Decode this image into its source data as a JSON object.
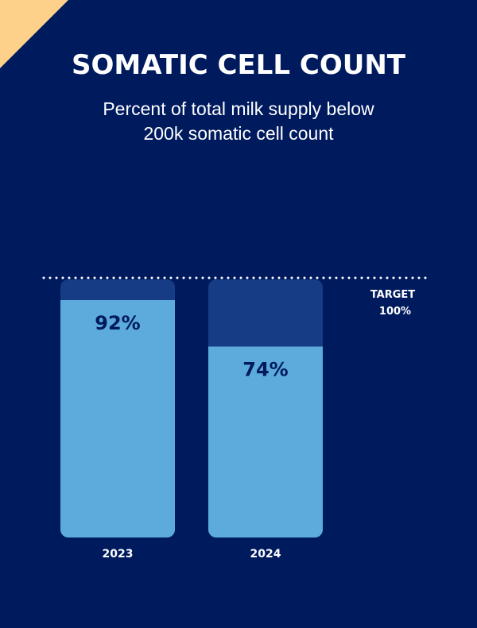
{
  "title": "SOMATIC CELL COUNT",
  "subtitle_line1": "Percent of total milk supply below",
  "subtitle_line2": "200k somatic cell count",
  "colors": {
    "background": "#001a5e",
    "accent_corner": "#fdd189",
    "bar_track": "#153c85",
    "bar_fill": "#5cabdc",
    "label_on_bar": "#001a5e",
    "text": "#ffffff"
  },
  "chart_data": {
    "type": "bar",
    "title": "SOMATIC CELL COUNT",
    "subtitle": "Percent of total milk supply below 200k somatic cell count",
    "categories": [
      "2023",
      "2024"
    ],
    "values": [
      92,
      74
    ],
    "value_labels": [
      "92%",
      "74%"
    ],
    "ylim": [
      0,
      100
    ],
    "xlabel": "",
    "ylabel": "",
    "target": {
      "value": 100,
      "label_line1": "TARGET",
      "label_line2": "100%"
    }
  }
}
